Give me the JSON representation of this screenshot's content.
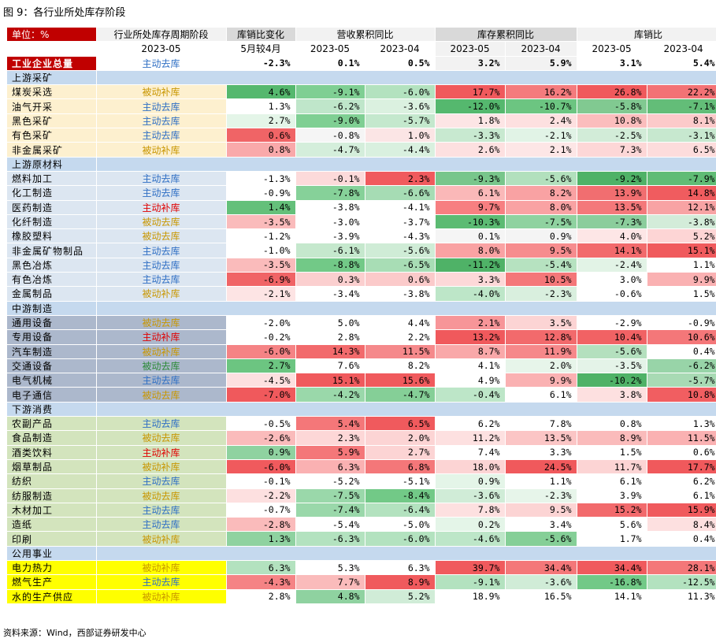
{
  "title": "图 9：各行业所处库存阶段",
  "source": "资料来源：Wind，西部证券研发中心",
  "colors": {
    "header_red": "#c00000",
    "section_blue": "#c5d9ee",
    "upstream_mining": "#fdf0cf",
    "upstream_material": "#dce6f1",
    "midstream": "#acb8cc",
    "downstream": "#d3e4bd",
    "utilities": "#ffff00",
    "passive_stage": "#c89600",
    "active_destock": "#2f6fc4",
    "active_restock": "#e00000",
    "passive_destock": "#2c8a38"
  },
  "header": {
    "unit": "单位：%",
    "cols": [
      "行业所处库存周期阶段",
      "库销比变化",
      "营收累积同比",
      "库存累积同比",
      "库销比"
    ],
    "subs": [
      "2023-05",
      "5月较4月",
      "2023-05",
      "2023-04",
      "2023-05",
      "2023-04",
      "2023-05",
      "2023-04"
    ]
  },
  "rows": [
    {
      "kind": "total",
      "name": "工业企业总量",
      "stage": "主动去库",
      "stage_type": "active_destock",
      "v": [
        "-2.3%",
        "0.1%",
        "0.5%",
        "3.2%",
        "5.9%",
        "3.1%",
        "5.4%"
      ],
      "bg": [
        "#ffffff",
        "#ffffff",
        "#ffffff",
        "#f2f2f2",
        "#f2f2f2",
        "#ffffff",
        "#ffffff"
      ]
    },
    {
      "kind": "section",
      "name": "上游采矿"
    },
    {
      "kind": "data",
      "group": "upstream_mining",
      "name": "煤炭采选",
      "stage": "被动补库",
      "stage_type": "passive_stage",
      "v": [
        "4.6%",
        "-9.1%",
        "-6.0%",
        "17.7%",
        "16.2%",
        "26.8%",
        "22.2%"
      ],
      "bg": [
        "#55b86e",
        "#7fcf93",
        "#b3e2bf",
        "#f0595c",
        "#f47b7d",
        "#f0595c",
        "#f37275"
      ]
    },
    {
      "kind": "data",
      "group": "upstream_mining",
      "name": "油气开采",
      "stage": "主动去库",
      "stage_type": "active_destock",
      "v": [
        "1.3%",
        "-6.2%",
        "-3.6%",
        "-12.0%",
        "-10.7%",
        "-5.8%",
        "-7.1%"
      ],
      "bg": [
        "#ffffff",
        "#bfe6ca",
        "#dbf1e0",
        "#55b86e",
        "#6cc581",
        "#81c991",
        "#63bd78"
      ]
    },
    {
      "kind": "data",
      "group": "upstream_mining",
      "name": "黑色采矿",
      "stage": "主动去库",
      "stage_type": "active_destock",
      "v": [
        "2.7%",
        "-9.0%",
        "-5.7%",
        "1.8%",
        "2.4%",
        "10.8%",
        "8.1%"
      ],
      "bg": [
        "#e4f5e8",
        "#7fcf93",
        "#c4e8cd",
        "#fde5e5",
        "#fde0e0",
        "#fbbdbd",
        "#fccaca"
      ]
    },
    {
      "kind": "data",
      "group": "upstream_mining",
      "name": "有色采矿",
      "stage": "主动去库",
      "stage_type": "active_destock",
      "v": [
        "0.6%",
        "-0.8%",
        "1.0%",
        "-3.3%",
        "-2.1%",
        "-2.5%",
        "-3.1%"
      ],
      "bg": [
        "#f06466",
        "#f5f5f5",
        "#fbe5e5",
        "#c8e9d0",
        "#e1f3e6",
        "#d2ecd8",
        "#c7e8cf"
      ]
    },
    {
      "kind": "data",
      "group": "upstream_mining",
      "name": "非金属采矿",
      "stage": "被动补库",
      "stage_type": "passive_stage",
      "v": [
        "0.8%",
        "-4.7%",
        "-4.4%",
        "2.6%",
        "2.1%",
        "7.3%",
        "6.5%"
      ],
      "bg": [
        "#f9a9aa",
        "#d4eedb",
        "#d9f0df",
        "#fde0e0",
        "#fde6e6",
        "#fdd7d7",
        "#fddcdc"
      ]
    },
    {
      "kind": "section",
      "name": "上游原材料"
    },
    {
      "kind": "data",
      "group": "upstream_material",
      "name": "燃料加工",
      "stage": "主动去库",
      "stage_type": "active_destock",
      "v": [
        "-1.3%",
        "-0.1%",
        "2.3%",
        "-9.3%",
        "-5.6%",
        "-9.2%",
        "-7.9%"
      ],
      "bg": [
        "#ffffff",
        "#fcdada",
        "#f05a5d",
        "#78c68b",
        "#b2e0bd",
        "#4fb267",
        "#60bc75"
      ]
    },
    {
      "kind": "data",
      "group": "upstream_material",
      "name": "化工制造",
      "stage": "主动去库",
      "stage_type": "active_destock",
      "v": [
        "-0.9%",
        "-7.8%",
        "-6.6%",
        "6.1%",
        "8.2%",
        "13.9%",
        "14.8%"
      ],
      "bg": [
        "#ffffff",
        "#86d199",
        "#a6dcb4",
        "#fab8b8",
        "#f9a2a3",
        "#f16e70",
        "#f05c5f"
      ]
    },
    {
      "kind": "data",
      "group": "upstream_material",
      "name": "医药制造",
      "stage": "主动补库",
      "stage_type": "active_restock",
      "v": [
        "1.4%",
        "-3.8%",
        "-4.1%",
        "9.7%",
        "8.0%",
        "13.5%",
        "12.1%"
      ],
      "bg": [
        "#64c07a",
        "#ffffff",
        "#ffffff",
        "#f77f81",
        "#f9a2a3",
        "#f4787a",
        "#f8a3a4"
      ]
    },
    {
      "kind": "data",
      "group": "upstream_material",
      "name": "化纤制造",
      "stage": "被动去库",
      "stage_type": "passive_stage",
      "v": [
        "-3.5%",
        "-3.0%",
        "-3.7%",
        "-10.3%",
        "-7.5%",
        "-7.3%",
        "-3.8%"
      ],
      "bg": [
        "#fabbbb",
        "#ffffff",
        "#ffffff",
        "#5cbb73",
        "#8fd2a0",
        "#8bcd9c",
        "#d3ecd9"
      ]
    },
    {
      "kind": "data",
      "group": "upstream_material",
      "name": "橡胶塑料",
      "stage": "被动去库",
      "stage_type": "passive_stage",
      "v": [
        "-1.2%",
        "-3.9%",
        "-4.3%",
        "0.1%",
        "0.9%",
        "4.0%",
        "5.2%"
      ],
      "bg": [
        "#ffffff",
        "#ffffff",
        "#ffffff",
        "#f5f5f5",
        "#f4f4f4",
        "#fde6e6",
        "#fdd5d5"
      ]
    },
    {
      "kind": "data",
      "group": "upstream_material",
      "name": "非金属矿物制品",
      "stage": "主动去库",
      "stage_type": "active_destock",
      "v": [
        "-1.0%",
        "-6.1%",
        "-5.6%",
        "8.0%",
        "9.5%",
        "14.1%",
        "15.1%"
      ],
      "bg": [
        "#ffffff",
        "#c5e8cd",
        "#cfecd6",
        "#f9a2a3",
        "#f68c8e",
        "#f26a6c",
        "#f05a5d"
      ]
    },
    {
      "kind": "data",
      "group": "upstream_material",
      "name": "黑色冶炼",
      "stage": "主动去库",
      "stage_type": "active_destock",
      "v": [
        "-3.5%",
        "-8.8%",
        "-6.5%",
        "-11.2%",
        "-5.4%",
        "-2.4%",
        "1.1%"
      ],
      "bg": [
        "#fabbbb",
        "#72c987",
        "#a8ddb5",
        "#4fb267",
        "#b6e2c0",
        "#e2f3e6",
        "#ffffff"
      ]
    },
    {
      "kind": "data",
      "group": "upstream_material",
      "name": "有色冶炼",
      "stage": "主动去库",
      "stage_type": "active_destock",
      "v": [
        "-6.9%",
        "0.3%",
        "0.6%",
        "3.3%",
        "10.5%",
        "3.0%",
        "9.9%"
      ],
      "bg": [
        "#f06466",
        "#fbcfcf",
        "#fbcaca",
        "#fdd8d8",
        "#f47779",
        "#ffffff",
        "#fab1b2"
      ]
    },
    {
      "kind": "data",
      "group": "upstream_material",
      "name": "金属制品",
      "stage": "被动补库",
      "stage_type": "passive_stage",
      "v": [
        "-2.1%",
        "-3.4%",
        "-3.8%",
        "-4.0%",
        "-2.3%",
        "-0.6%",
        "1.5%"
      ],
      "bg": [
        "#fde4e4",
        "#ffffff",
        "#ffffff",
        "#bde6c8",
        "#d9efde",
        "#ffffff",
        "#ffffff"
      ]
    },
    {
      "kind": "section",
      "name": "中游制造"
    },
    {
      "kind": "data",
      "group": "midstream",
      "name": "通用设备",
      "stage": "被动去库",
      "stage_type": "passive_stage",
      "v": [
        "-2.0%",
        "5.0%",
        "4.4%",
        "2.1%",
        "3.5%",
        "-2.9%",
        "-0.9%"
      ],
      "bg": [
        "#ffffff",
        "#ffffff",
        "#ffffff",
        "#f79598",
        "#fcd4d4",
        "#ffffff",
        "#ffffff"
      ]
    },
    {
      "kind": "data",
      "group": "midstream",
      "name": "专用设备",
      "stage": "主动补库",
      "stage_type": "active_restock",
      "v": [
        "-0.2%",
        "2.8%",
        "2.2%",
        "13.2%",
        "12.8%",
        "10.4%",
        "10.6%"
      ],
      "bg": [
        "#ffffff",
        "#ffffff",
        "#ffffff",
        "#f0595c",
        "#f26a6c",
        "#f16264",
        "#f47779"
      ]
    },
    {
      "kind": "data",
      "group": "midstream",
      "name": "汽车制造",
      "stage": "被动补库",
      "stage_type": "passive_stage",
      "v": [
        "-6.0%",
        "14.3%",
        "11.5%",
        "8.7%",
        "11.9%",
        "-5.6%",
        "0.4%"
      ],
      "bg": [
        "#f58385",
        "#f26a6c",
        "#f5898b",
        "#f9a8a9",
        "#f6888a",
        "#b4e0be",
        "#ffffff"
      ]
    },
    {
      "kind": "data",
      "group": "midstream",
      "name": "交通设备",
      "stage": "被动去库",
      "stage_type": "passive_destock",
      "v": [
        "2.7%",
        "7.6%",
        "8.2%",
        "4.1%",
        "2.0%",
        "-3.5%",
        "-6.2%"
      ],
      "bg": [
        "#6cc581",
        "#ffffff",
        "#ffffff",
        "#ffffff",
        "#e7f5ea",
        "#e4f3e8",
        "#98d4a8"
      ]
    },
    {
      "kind": "data",
      "group": "midstream",
      "name": "电气机械",
      "stage": "主动去库",
      "stage_type": "active_destock",
      "v": [
        "-4.5%",
        "15.1%",
        "15.6%",
        "4.9%",
        "9.9%",
        "-10.2%",
        "-5.7%"
      ],
      "bg": [
        "#fde0e0",
        "#f05a5d",
        "#f05a5d",
        "#ffffff",
        "#fab1b2",
        "#4fb267",
        "#a8daB4"
      ]
    },
    {
      "kind": "data",
      "group": "midstream",
      "name": "电子通信",
      "stage": "被动去库",
      "stage_type": "passive_stage",
      "v": [
        "-7.0%",
        "-4.2%",
        "-4.7%",
        "-0.4%",
        "6.1%",
        "3.8%",
        "10.8%"
      ],
      "bg": [
        "#f0595c",
        "#9ad8aa",
        "#85cf97",
        "#bde6c8",
        "#ffffff",
        "#fde0e0",
        "#f15e61"
      ]
    },
    {
      "kind": "section",
      "name": "下游消费"
    },
    {
      "kind": "data",
      "group": "downstream",
      "name": "农副产品",
      "stage": "主动去库",
      "stage_type": "active_destock",
      "v": [
        "-0.5%",
        "5.4%",
        "6.5%",
        "6.2%",
        "7.8%",
        "0.8%",
        "1.3%"
      ],
      "bg": [
        "#ffffff",
        "#f47779",
        "#f05a5d",
        "#ffffff",
        "#ffffff",
        "#ffffff",
        "#ffffff"
      ]
    },
    {
      "kind": "data",
      "group": "downstream",
      "name": "食品制造",
      "stage": "被动去库",
      "stage_type": "passive_stage",
      "v": [
        "-2.6%",
        "2.3%",
        "2.0%",
        "11.2%",
        "13.5%",
        "8.9%",
        "11.5%"
      ],
      "bg": [
        "#fabbbb",
        "#fdd7d7",
        "#fcd4d4",
        "#fde0e0",
        "#fbc5c5",
        "#fabbbb",
        "#fab1b2"
      ]
    },
    {
      "kind": "data",
      "group": "downstream",
      "name": "酒类饮料",
      "stage": "主动补库",
      "stage_type": "active_restock",
      "v": [
        "0.9%",
        "5.9%",
        "2.7%",
        "7.4%",
        "3.3%",
        "1.5%",
        "0.6%"
      ],
      "bg": [
        "#8fd2a0",
        "#f47779",
        "#fcd4d4",
        "#ffffff",
        "#ffffff",
        "#ffffff",
        "#ffffff"
      ]
    },
    {
      "kind": "data",
      "group": "downstream",
      "name": "烟草制品",
      "stage": "被动补库",
      "stage_type": "passive_stage",
      "v": [
        "-6.0%",
        "6.3%",
        "6.8%",
        "18.0%",
        "24.5%",
        "11.7%",
        "17.7%"
      ],
      "bg": [
        "#f05a5d",
        "#fab1b2",
        "#f47779",
        "#fcd4d4",
        "#f0595c",
        "#fcd4d4",
        "#f0595c"
      ]
    },
    {
      "kind": "data",
      "group": "downstream",
      "name": "纺织",
      "stage": "主动去库",
      "stage_type": "active_destock",
      "v": [
        "-0.1%",
        "-5.2%",
        "-5.1%",
        "0.9%",
        "1.1%",
        "6.1%",
        "6.2%"
      ],
      "bg": [
        "#ffffff",
        "#ffffff",
        "#ffffff",
        "#e4f5e8",
        "#ffffff",
        "#ffffff",
        "#ffffff"
      ]
    },
    {
      "kind": "data",
      "group": "downstream",
      "name": "纺服制造",
      "stage": "被动去库",
      "stage_type": "passive_stage",
      "v": [
        "-2.2%",
        "-7.5%",
        "-8.4%",
        "-3.6%",
        "-2.3%",
        "3.9%",
        "6.1%"
      ],
      "bg": [
        "#fde0e0",
        "#9ad8aa",
        "#72c987",
        "#d0ecd7",
        "#e7f5ea",
        "#ffffff",
        "#ffffff"
      ]
    },
    {
      "kind": "data",
      "group": "downstream",
      "name": "木材加工",
      "stage": "主动去库",
      "stage_type": "active_destock",
      "v": [
        "-0.7%",
        "-7.4%",
        "-6.4%",
        "7.8%",
        "9.5%",
        "15.2%",
        "15.9%"
      ],
      "bg": [
        "#ffffff",
        "#9ad8aa",
        "#b3e2bf",
        "#fde0e0",
        "#fcd4d4",
        "#f26a6c",
        "#f05a5d"
      ]
    },
    {
      "kind": "data",
      "group": "downstream",
      "name": "造纸",
      "stage": "主动去库",
      "stage_type": "active_destock",
      "v": [
        "-2.8%",
        "-5.4%",
        "-5.0%",
        "0.2%",
        "3.4%",
        "5.6%",
        "8.4%"
      ],
      "bg": [
        "#fabbbb",
        "#ffffff",
        "#ffffff",
        "#e4f5e8",
        "#ffffff",
        "#ffffff",
        "#fde0e0"
      ]
    },
    {
      "kind": "data",
      "group": "downstream",
      "name": "印刷",
      "stage": "被动补库",
      "stage_type": "passive_stage",
      "v": [
        "1.3%",
        "-6.3%",
        "-6.0%",
        "-4.6%",
        "-5.6%",
        "1.7%",
        "0.4%"
      ],
      "bg": [
        "#8fd2a0",
        "#b3e2bf",
        "#b3e2bf",
        "#bde6c8",
        "#85cf97",
        "#ffffff",
        "#ffffff"
      ]
    },
    {
      "kind": "section",
      "name": "公用事业"
    },
    {
      "kind": "data",
      "group": "utilities",
      "name": "电力热力",
      "stage": "被动补库",
      "stage_type": "passive_stage",
      "v": [
        "6.3%",
        "5.3%",
        "6.3%",
        "39.7%",
        "34.4%",
        "34.4%",
        "28.1%"
      ],
      "bg": [
        "#b3e2bf",
        "#ffffff",
        "#ffffff",
        "#f05a5d",
        "#f47779",
        "#f05a5d",
        "#f47779"
      ]
    },
    {
      "kind": "data",
      "group": "utilities",
      "name": "燃气生产",
      "stage": "主动去库",
      "stage_type": "active_destock",
      "v": [
        "-4.3%",
        "7.7%",
        "8.9%",
        "-9.1%",
        "-3.6%",
        "-16.8%",
        "-12.5%"
      ],
      "bg": [
        "#f58385",
        "#fabbbb",
        "#f05a5d",
        "#b3e2bf",
        "#d0ecd7",
        "#72c987",
        "#b3e2bf"
      ]
    },
    {
      "kind": "data",
      "group": "utilities",
      "name": "水的生产供应",
      "stage": "被动补库",
      "stage_type": "passive_stage",
      "v": [
        "2.8%",
        "4.8%",
        "5.2%",
        "18.9%",
        "16.5%",
        "14.1%",
        "11.3%"
      ],
      "bg": [
        "#ffffff",
        "#8fd2a0",
        "#d0ecd7",
        "#ffffff",
        "#ffffff",
        "#ffffff",
        "#ffffff"
      ]
    }
  ]
}
